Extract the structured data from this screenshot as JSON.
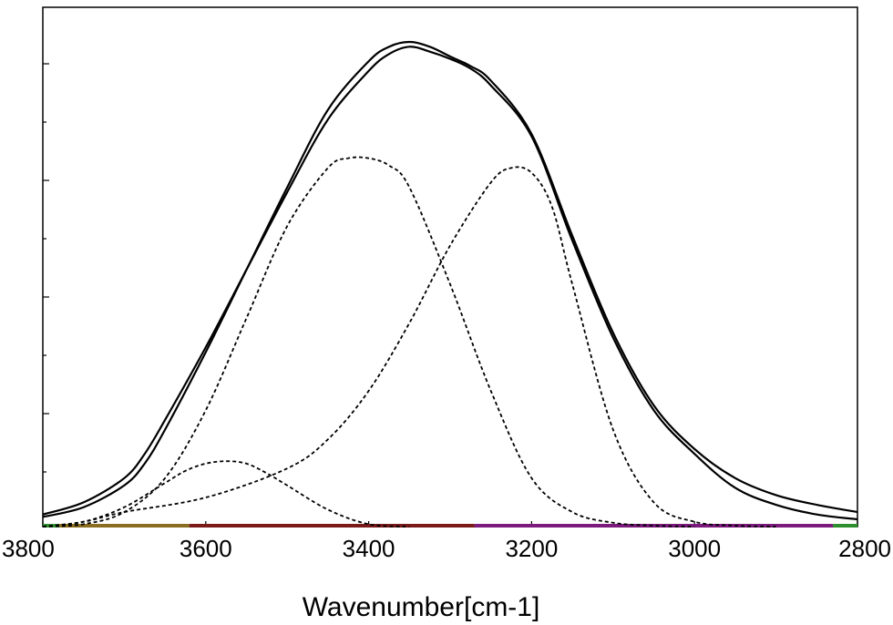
{
  "chart_data": {
    "type": "line",
    "title": "",
    "xlabel": "Wavenumber[cm-1]",
    "ylabel": "",
    "xlim": [
      3800,
      2800
    ],
    "x_reversed": true,
    "ylim": [
      0,
      1.0
    ],
    "x_ticks": [
      3800,
      3600,
      3400,
      3200,
      3000,
      2800
    ],
    "x_tick_labels": [
      "3800",
      "3600",
      "3400",
      "3200",
      "3000",
      "2800"
    ],
    "y_tick_labels_shown": false,
    "grid": false,
    "legend": "none",
    "series": [
      {
        "style": "solid",
        "color": "#000000",
        "x": [
          3800,
          3750,
          3700,
          3675,
          3650,
          3600,
          3550,
          3500,
          3450,
          3400,
          3375,
          3350,
          3325,
          3300,
          3275,
          3250,
          3200,
          3150,
          3100,
          3050,
          3000,
          2950,
          2900,
          2850,
          2800
        ],
        "y": [
          0.02,
          0.04,
          0.085,
          0.13,
          0.2,
          0.36,
          0.53,
          0.7,
          0.86,
          0.96,
          0.99,
          1.0,
          0.99,
          0.97,
          0.95,
          0.92,
          0.81,
          0.6,
          0.4,
          0.25,
          0.16,
          0.1,
          0.065,
          0.045,
          0.03
        ]
      },
      {
        "style": "solid",
        "color": "#000000",
        "x": [
          3800,
          3750,
          3700,
          3675,
          3650,
          3600,
          3550,
          3500,
          3450,
          3400,
          3375,
          3350,
          3325,
          3300,
          3275,
          3250,
          3200,
          3150,
          3100,
          3050,
          3000,
          2950,
          2900,
          2850,
          2800
        ],
        "y": [
          0.025,
          0.05,
          0.1,
          0.15,
          0.22,
          0.37,
          0.53,
          0.69,
          0.84,
          0.94,
          0.975,
          0.99,
          0.98,
          0.965,
          0.945,
          0.91,
          0.805,
          0.59,
          0.39,
          0.24,
          0.15,
          0.08,
          0.045,
          0.025,
          0.015
        ]
      },
      {
        "style": "dashed",
        "color": "#000000",
        "x": [
          3800,
          3750,
          3700,
          3650,
          3600,
          3550,
          3500,
          3450,
          3425,
          3400,
          3375,
          3350,
          3300,
          3250,
          3200,
          3150,
          3100,
          3050,
          3000
        ],
        "y": [
          0.0,
          0.005,
          0.03,
          0.1,
          0.24,
          0.43,
          0.62,
          0.74,
          0.76,
          0.76,
          0.745,
          0.7,
          0.5,
          0.28,
          0.1,
          0.03,
          0.008,
          0.002,
          0.0
        ]
      },
      {
        "style": "dashed",
        "color": "#000000",
        "x": [
          3800,
          3750,
          3700,
          3600,
          3500,
          3450,
          3400,
          3350,
          3300,
          3250,
          3225,
          3200,
          3175,
          3150,
          3100,
          3050,
          3000,
          2950,
          2900
        ],
        "y": [
          0.0,
          0.01,
          0.03,
          0.06,
          0.12,
          0.18,
          0.28,
          0.42,
          0.58,
          0.71,
          0.74,
          0.73,
          0.66,
          0.5,
          0.2,
          0.05,
          0.01,
          0.002,
          0.0
        ]
      },
      {
        "style": "dashed",
        "color": "#000000",
        "x": [
          3800,
          3750,
          3700,
          3650,
          3625,
          3600,
          3575,
          3550,
          3525,
          3500,
          3450,
          3400,
          3350
        ],
        "y": [
          0.0,
          0.01,
          0.04,
          0.09,
          0.115,
          0.13,
          0.135,
          0.13,
          0.11,
          0.085,
          0.035,
          0.005,
          0.0
        ]
      }
    ],
    "baseline_colors": [
      "#2f8f2f",
      "#8a6d1e",
      "#7a1a1a",
      "#7d1a7d"
    ]
  }
}
